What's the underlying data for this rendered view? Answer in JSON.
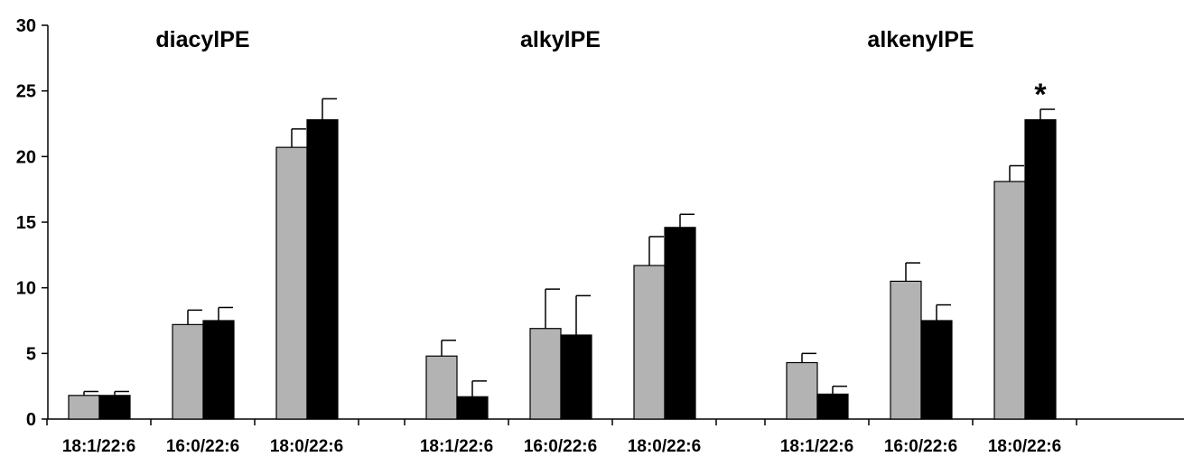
{
  "chart_data": {
    "type": "bar",
    "ylim": [
      0,
      30
    ],
    "yticks": [
      0,
      5,
      10,
      15,
      20,
      25,
      30
    ],
    "grid": false,
    "legend": "none",
    "colors": {
      "series_a": "#b3b3b3",
      "series_b": "#000000"
    },
    "groups": [
      {
        "title": "diacylPE",
        "categories": [
          "18:1/22:6",
          "16:0/22:6",
          "18:0/22:6"
        ],
        "series": [
          {
            "values": [
              1.8,
              7.2,
              20.7
            ],
            "errors": [
              0.3,
              1.1,
              1.4
            ]
          },
          {
            "values": [
              1.8,
              7.5,
              22.8
            ],
            "errors": [
              0.3,
              1.0,
              1.6
            ]
          }
        ]
      },
      {
        "title": "alkylPE",
        "categories": [
          "18:1/22:6",
          "16:0/22:6",
          "18:0/22:6"
        ],
        "series": [
          {
            "values": [
              4.8,
              6.9,
              11.7
            ],
            "errors": [
              1.2,
              3.0,
              2.2
            ]
          },
          {
            "values": [
              1.7,
              6.4,
              14.6
            ],
            "errors": [
              1.2,
              3.0,
              1.0
            ]
          }
        ]
      },
      {
        "title": "alkenylPE",
        "categories": [
          "18:1/22:6",
          "16:0/22:6",
          "18:0/22:6"
        ],
        "series": [
          {
            "values": [
              4.3,
              10.5,
              18.1
            ],
            "errors": [
              0.7,
              1.4,
              1.2
            ]
          },
          {
            "values": [
              1.9,
              7.5,
              22.8
            ],
            "errors": [
              0.6,
              1.2,
              0.8
            ]
          }
        ],
        "annotation": {
          "text": "*",
          "category": "18:0/22:6"
        }
      }
    ]
  }
}
